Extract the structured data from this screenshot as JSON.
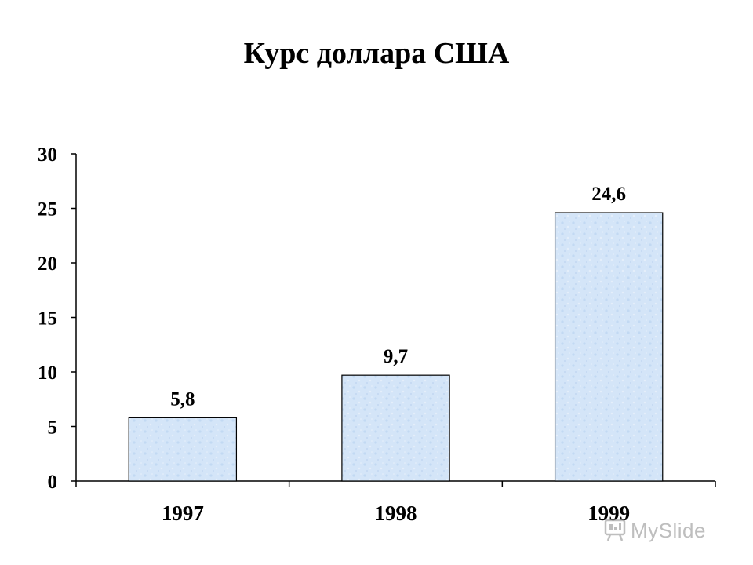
{
  "chart_data": {
    "type": "bar",
    "title": "Курс доллара США",
    "categories": [
      "1997",
      "1998",
      "1999"
    ],
    "values": [
      5.8,
      9.7,
      24.6
    ],
    "value_labels": [
      "5,8",
      "9,7",
      "24,6"
    ],
    "y_ticks": [
      "0",
      "5",
      "10",
      "15",
      "20",
      "25",
      "30"
    ],
    "ylim": [
      0,
      30
    ],
    "xlabel": "",
    "ylabel": "",
    "grid": false,
    "legend": "none",
    "bar_color": "#d4e5f8",
    "bar_border_color": "#000000"
  },
  "watermark": {
    "text": "MySlide"
  }
}
